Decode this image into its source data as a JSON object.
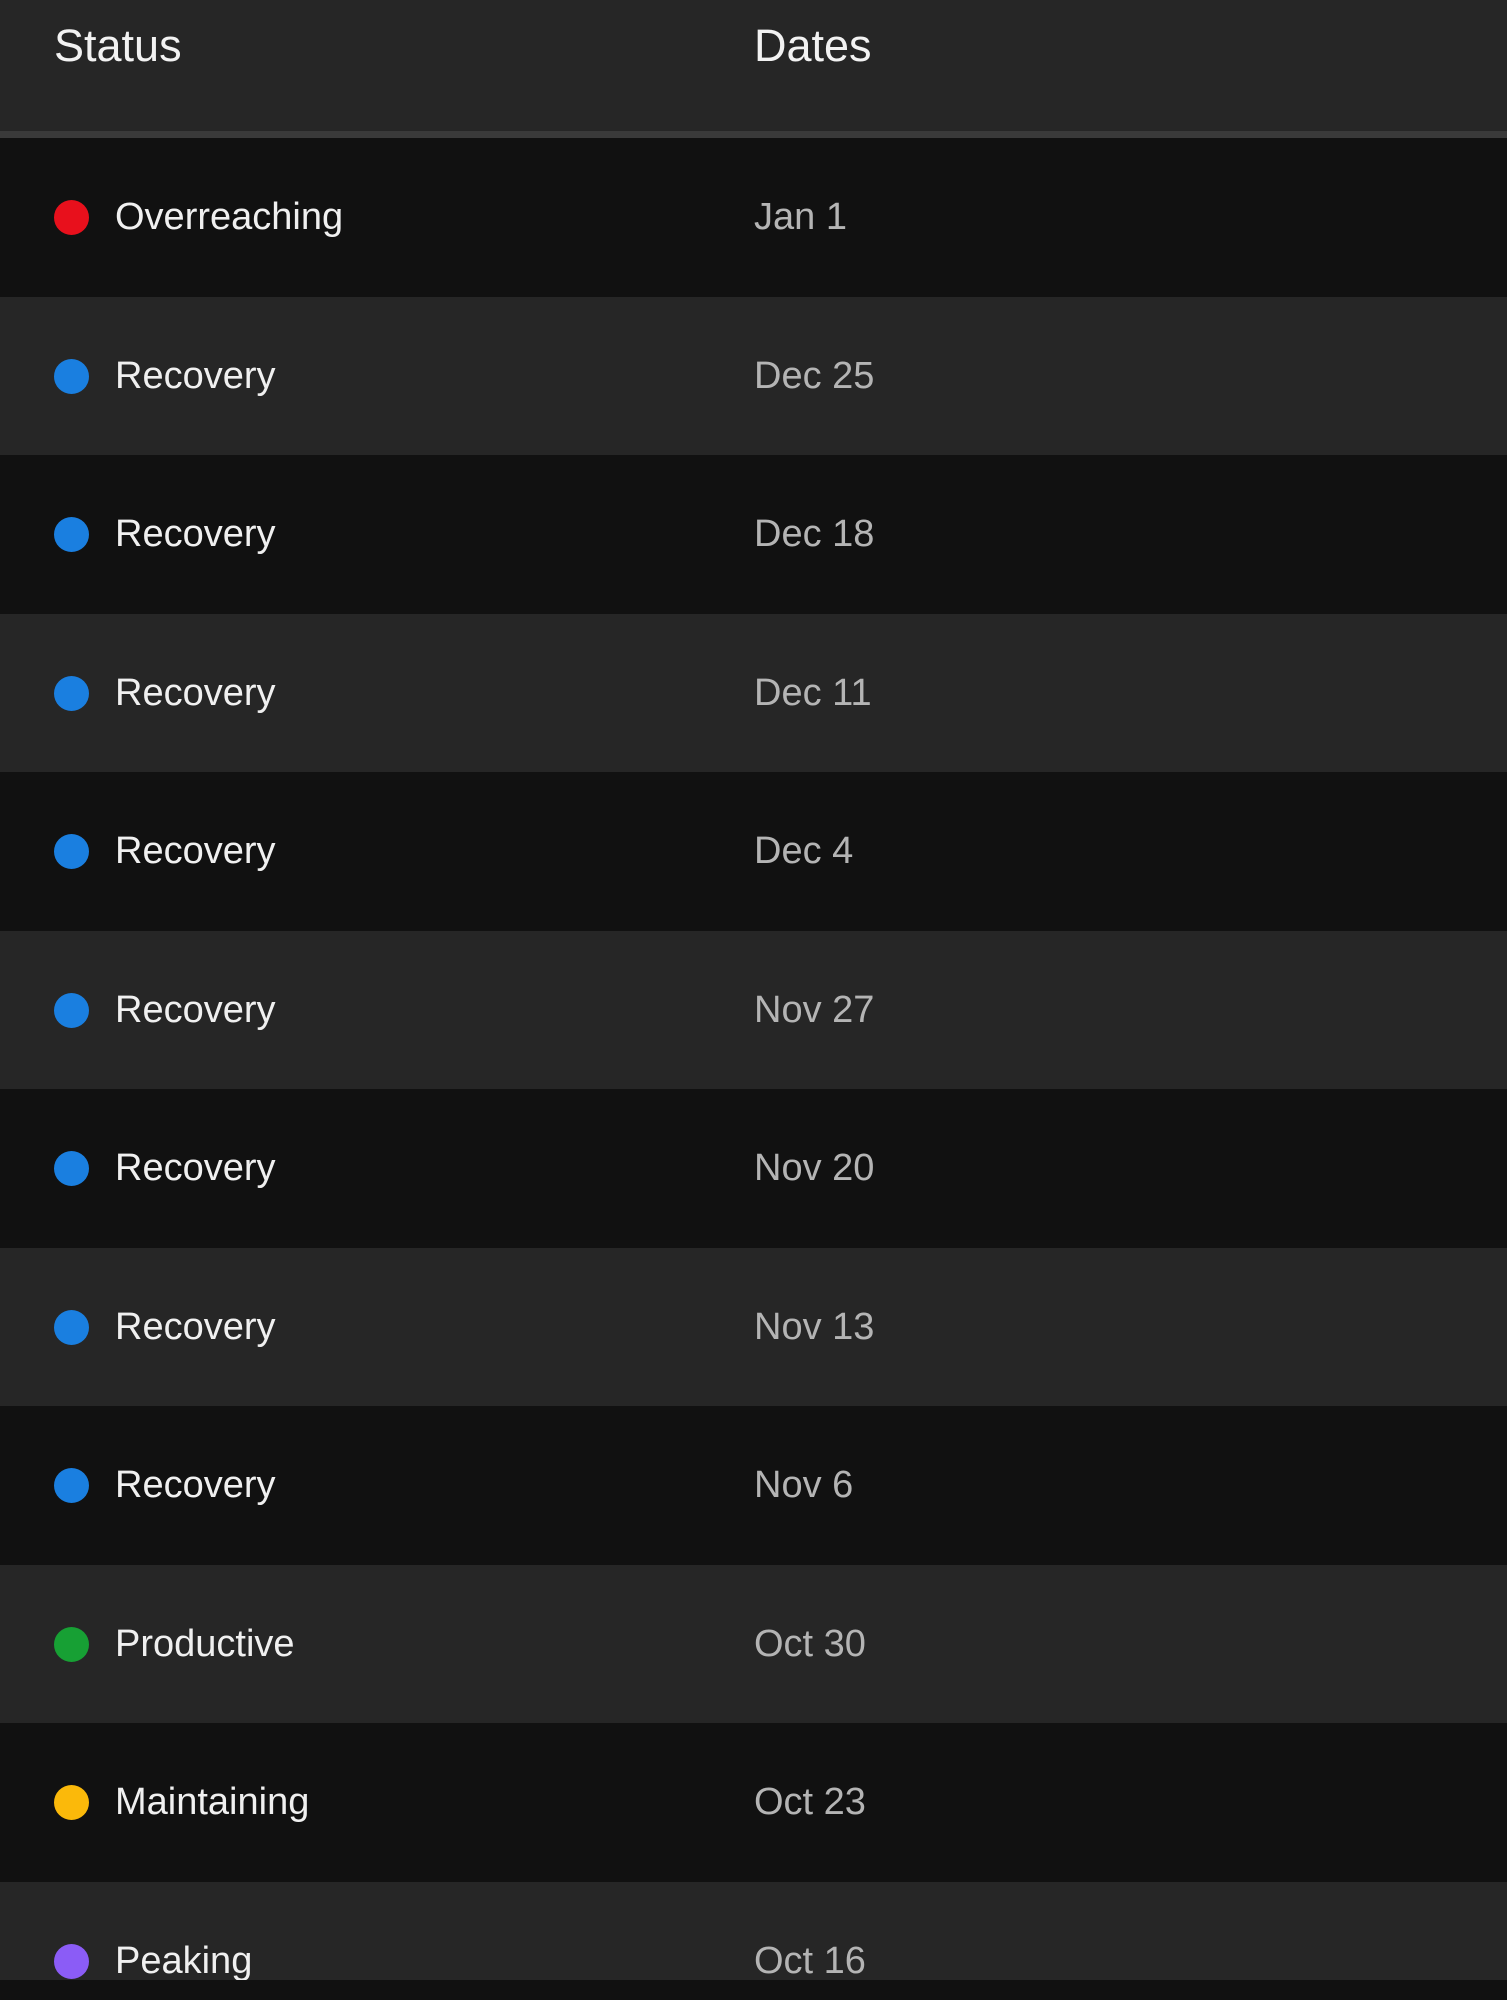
{
  "header": {
    "status_label": "Status",
    "dates_label": "Dates"
  },
  "status_colors": {
    "Overreaching": "#e8101c",
    "Recovery": "#1a7fe0",
    "Productive": "#17a034",
    "Maintaining": "#fbb90a",
    "Peaking": "#8b5cf6"
  },
  "rows": [
    {
      "status": "Overreaching",
      "date": "Jan 1"
    },
    {
      "status": "Recovery",
      "date": "Dec 25"
    },
    {
      "status": "Recovery",
      "date": "Dec 18"
    },
    {
      "status": "Recovery",
      "date": "Dec 11"
    },
    {
      "status": "Recovery",
      "date": "Dec 4"
    },
    {
      "status": "Recovery",
      "date": "Nov 27"
    },
    {
      "status": "Recovery",
      "date": "Nov 20"
    },
    {
      "status": "Recovery",
      "date": "Nov 13"
    },
    {
      "status": "Recovery",
      "date": "Nov 6"
    },
    {
      "status": "Productive",
      "date": "Oct 30"
    },
    {
      "status": "Maintaining",
      "date": "Oct 23"
    },
    {
      "status": "Peaking",
      "date": "Oct 16"
    }
  ]
}
